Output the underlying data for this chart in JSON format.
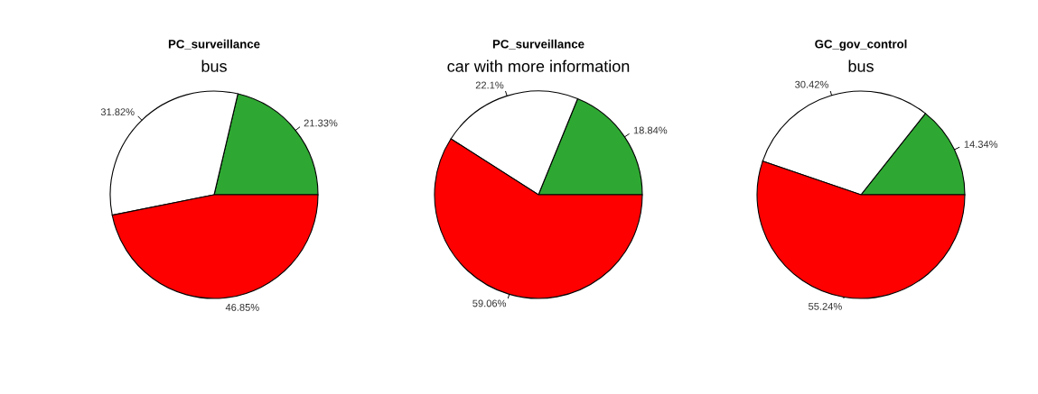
{
  "chart_data": [
    {
      "type": "pie",
      "title": "PC_surveillance",
      "subtitle": "bus",
      "categories": [
        null,
        null,
        null
      ],
      "values": [
        21.33,
        31.82,
        46.85
      ],
      "colors": [
        "#2ea832",
        "#ffffff",
        "#ff0000"
      ],
      "value_labels": [
        "21.33%",
        "31.82%",
        "46.85%"
      ]
    },
    {
      "type": "pie",
      "title": "PC_surveillance",
      "subtitle": "car with more information",
      "categories": [
        null,
        null,
        null
      ],
      "values": [
        18.84,
        22.1,
        59.06
      ],
      "colors": [
        "#2ea832",
        "#ffffff",
        "#ff0000"
      ],
      "value_labels": [
        "18.84%",
        "22.1%",
        "59.06%"
      ]
    },
    {
      "type": "pie",
      "title": "GC_gov_control",
      "subtitle": "bus",
      "categories": [
        null,
        null,
        null
      ],
      "values": [
        14.34,
        30.42,
        55.24
      ],
      "colors": [
        "#2ea832",
        "#ffffff",
        "#ff0000"
      ],
      "value_labels": [
        "14.34%",
        "30.42%",
        "55.24%"
      ]
    }
  ]
}
